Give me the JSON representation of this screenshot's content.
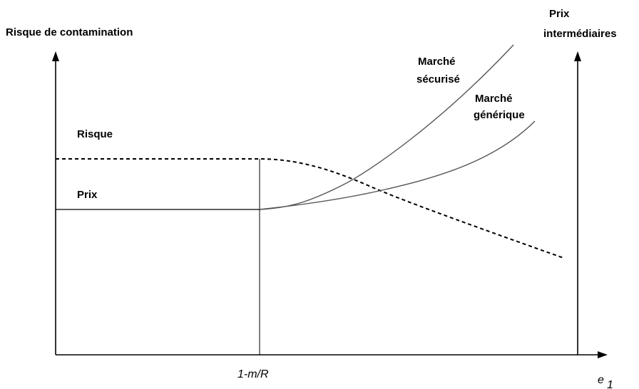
{
  "labels": {
    "left_axis": "Risque de contamination",
    "right_axis_line1": "Prix",
    "right_axis_line2": "intermédiaires",
    "x_axis_var": "e",
    "x_axis_sub": "1",
    "threshold": "1-m/R",
    "risk": "Risque",
    "price": "Prix",
    "secure_line1": "Marché",
    "secure_line2": "sécurisé",
    "generic_line1": "Marché",
    "generic_line2": "générique"
  },
  "curves": {
    "risk": "dashed",
    "price": "solid",
    "secure_market": "solid",
    "generic_market": "solid"
  }
}
